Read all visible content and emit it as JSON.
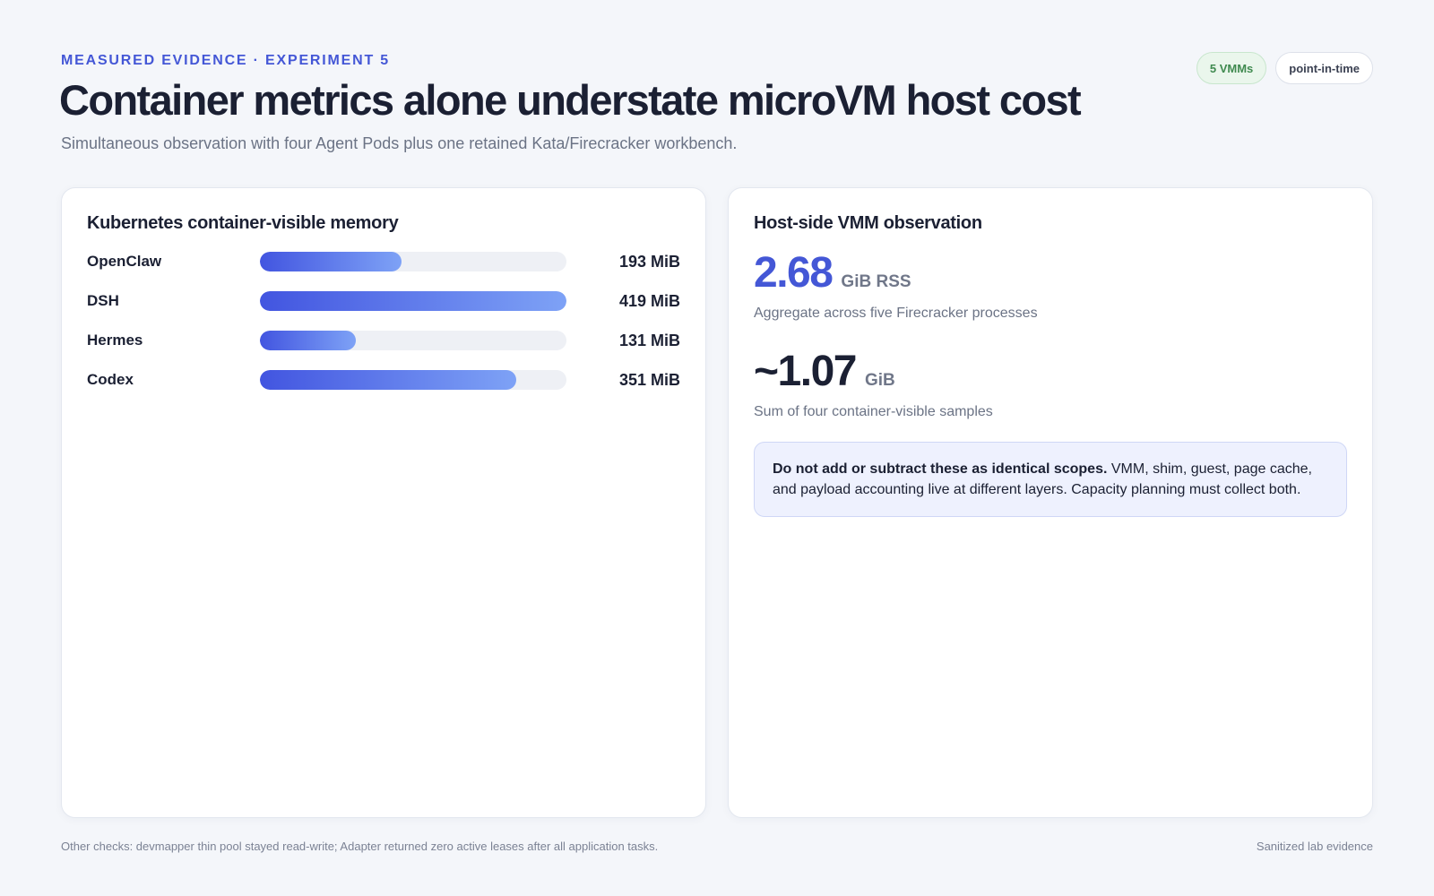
{
  "header": {
    "eyebrow": "MEASURED EVIDENCE · EXPERIMENT 5",
    "title": "Container metrics alone understate microVM host cost",
    "subtitle": "Simultaneous observation with four Agent Pods plus one retained Kata/Firecracker workbench.",
    "badges": [
      {
        "label": "5 VMMs",
        "tone": "#3f8a4f"
      },
      {
        "label": "point-in-time",
        "tone": "#3b4152"
      }
    ]
  },
  "left_panel": {
    "title": "Kubernetes container-visible memory",
    "max_value": 419,
    "rows": [
      {
        "label": "OpenClaw",
        "value": 193,
        "value_text": "193 MiB"
      },
      {
        "label": "DSH",
        "value": 419,
        "value_text": "419 MiB"
      },
      {
        "label": "Hermes",
        "value": 131,
        "value_text": "131 MiB"
      },
      {
        "label": "Codex",
        "value": 351,
        "value_text": "351 MiB"
      }
    ]
  },
  "right_panel": {
    "title": "Host-side VMM observation",
    "metric1": {
      "value": "2.68",
      "unit": "GiB RSS",
      "desc": "Aggregate across five Firecracker processes"
    },
    "metric2": {
      "value": "~1.07",
      "unit": "GiB",
      "desc": "Sum of four container-visible samples"
    },
    "note": {
      "bold": "Do not add or subtract these as identical scopes.",
      "text": " VMM, shim, guest, page cache, and payload accounting live at different layers. Capacity planning must collect both."
    }
  },
  "footer": {
    "left": "Other checks: devmapper thin pool stayed read-write; Adapter returned zero active leases after all application tasks.",
    "right": "Sanitized lab evidence"
  },
  "colors": {
    "accent": "#4457d6",
    "bar_start": "#4255e0",
    "bar_end": "#7ea2f6"
  }
}
